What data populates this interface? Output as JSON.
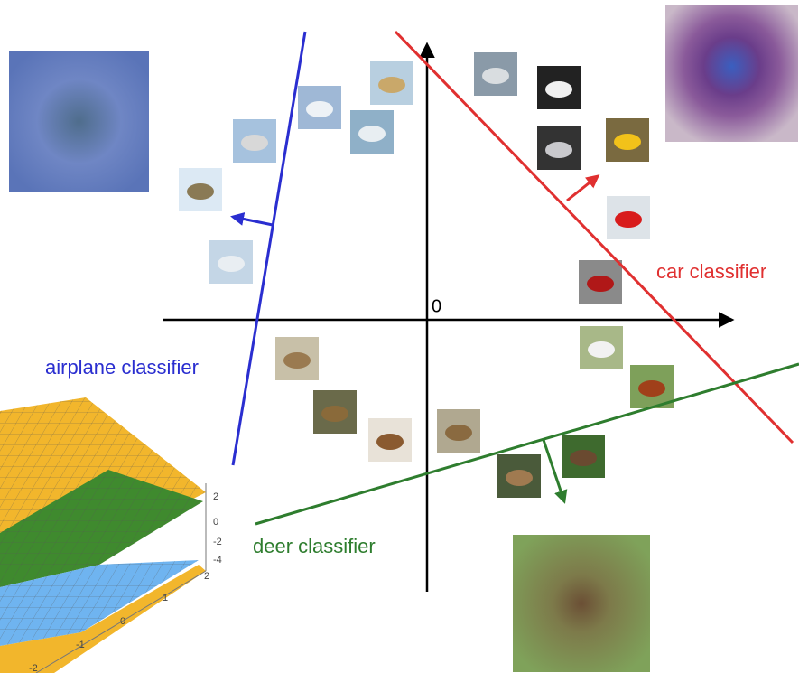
{
  "axes": {
    "origin_label": "0"
  },
  "classifiers": [
    {
      "label": "airplane classifier"
    },
    {
      "label": "car classifier"
    },
    {
      "label": "deer classifier"
    }
  ],
  "plot3d": {
    "z_ticks": [
      "2",
      "0",
      "-2",
      "-4"
    ],
    "y_ticks": [
      "2",
      "1",
      "0",
      "-1",
      "-2"
    ]
  }
}
